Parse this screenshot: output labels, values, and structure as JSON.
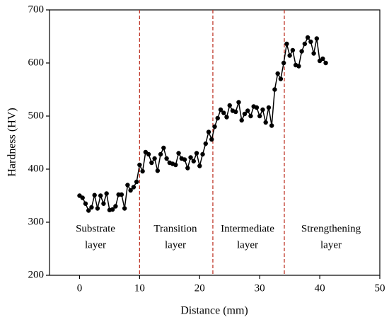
{
  "chart_data": {
    "type": "line",
    "xlabel": "Distance (mm)",
    "ylabel": "Hardness (HV)",
    "x": [
      0,
      0.5,
      1,
      1.5,
      2,
      2.5,
      3,
      3.5,
      4,
      4.5,
      5,
      5.5,
      6,
      6.5,
      7,
      7.5,
      8,
      8.5,
      9,
      9.5,
      10,
      10.5,
      11,
      11.5,
      12,
      12.5,
      13,
      13.5,
      14,
      14.5,
      15,
      15.5,
      16,
      16.5,
      17,
      17.5,
      18,
      18.5,
      19,
      19.5,
      20,
      20.5,
      21,
      21.5,
      22,
      22.5,
      23,
      23.5,
      24,
      24.5,
      25,
      25.5,
      26,
      26.5,
      27,
      27.5,
      28,
      28.5,
      29,
      29.5,
      30,
      30.5,
      31,
      31.5,
      32,
      32.5,
      33,
      33.5,
      34,
      34.5,
      35,
      35.5,
      36,
      36.5,
      37,
      37.5,
      38,
      38.5,
      39,
      39.5,
      40,
      40.5,
      41
    ],
    "series": [
      {
        "color": "#000000",
        "values": [
          350,
          346,
          335,
          322,
          328,
          351,
          326,
          350,
          335,
          354,
          323,
          324,
          330,
          352,
          352,
          326,
          370,
          360,
          366,
          376,
          408,
          396,
          432,
          428,
          412,
          420,
          397,
          428,
          440,
          420,
          412,
          410,
          408,
          430,
          420,
          418,
          402,
          422,
          415,
          430,
          406,
          428,
          448,
          470,
          456,
          480,
          496,
          512,
          506,
          498,
          520,
          510,
          508,
          526,
          492,
          504,
          510,
          500,
          518,
          516,
          500,
          512,
          488,
          516,
          482,
          550,
          580,
          570,
          600,
          636,
          614,
          624,
          596,
          594,
          622,
          636,
          648,
          640,
          618,
          646,
          604,
          608,
          600
        ]
      }
    ],
    "vlines": {
      "color": "#c0392b",
      "values": [
        10,
        22.2,
        34.1
      ]
    },
    "annotations": [
      [
        "Substrate",
        "layer"
      ],
      [
        "Transition",
        "layer"
      ],
      [
        "Intermediate",
        "layer"
      ],
      [
        "Strengthening",
        "layer"
      ]
    ],
    "xlim": [
      -5,
      50
    ],
    "xticks": [
      0,
      10,
      20,
      30,
      40,
      50
    ],
    "ylim": [
      200,
      700
    ],
    "yticks": [
      200,
      300,
      400,
      500,
      600,
      700
    ]
  }
}
